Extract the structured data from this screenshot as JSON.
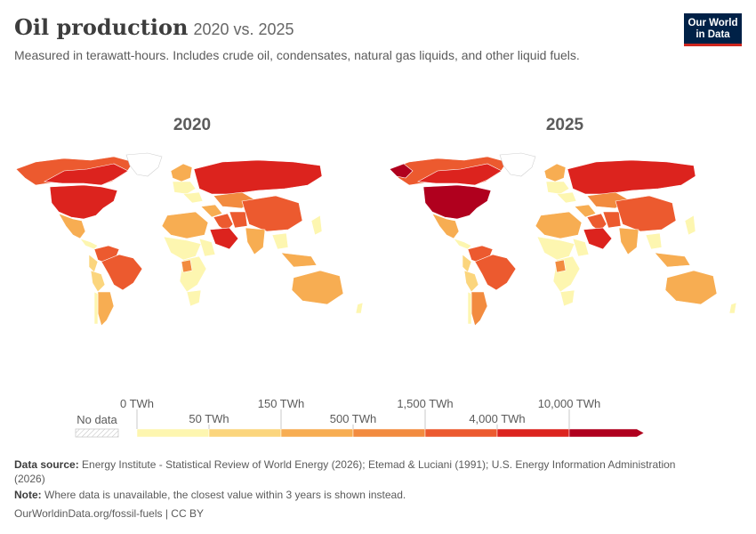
{
  "header": {
    "title": "Oil production",
    "title_period": "2020 vs. 2025",
    "subtitle": "Measured in terawatt-hours. Includes crude oil, condensates, natural gas liquids, and other liquid fuels.",
    "logo_line1": "Our World",
    "logo_line2": "in Data"
  },
  "maps": [
    {
      "year": "2020"
    },
    {
      "year": "2025"
    }
  ],
  "legend": {
    "no_data_label": "No data",
    "top_ticks": [
      "0 TWh",
      "150 TWh",
      "1,500 TWh",
      "10,000 TWh"
    ],
    "bottom_ticks": [
      "50 TWh",
      "500 TWh",
      "4,000 TWh"
    ],
    "colors": [
      "#fdf6b0",
      "#fbd57d",
      "#f7ad52",
      "#f28b3f",
      "#ec5a2f",
      "#dc231e",
      "#b0001e"
    ]
  },
  "footer": {
    "source_label": "Data source:",
    "source_text": "Energy Institute - Statistical Review of World Energy (2026); Etemad & Luciani (1991); U.S. Energy Information Administration",
    "source_text_2": "(2026)",
    "note_label": "Note:",
    "note_text": "Where data is unavailable, the closest value within 3 years is shown instead.",
    "url": "OurWorldinData.org/fossil-fuels | CC BY"
  }
}
